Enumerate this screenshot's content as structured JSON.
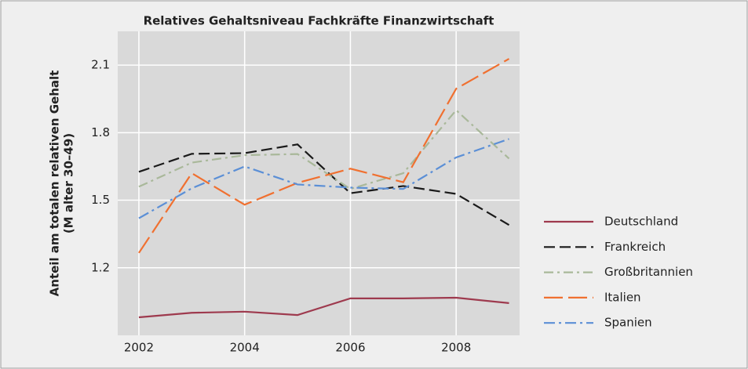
{
  "chart_data": {
    "type": "line",
    "title": "Relatives Gehaltsniveau Fachkräfte Finanzwirtschaft",
    "y_label": [
      "Anteil am totalen relativen Gehalt",
      "(M alter 30–49)"
    ],
    "x": [
      2002,
      2003,
      2004,
      2005,
      2006,
      2007,
      2008,
      2009
    ],
    "xlim": [
      2001.6,
      2009.2
    ],
    "xticks": [
      2002,
      2004,
      2006,
      2008
    ],
    "ylim": [
      0.9,
      2.25
    ],
    "yticks": [
      1.2,
      1.5,
      1.8,
      2.1
    ],
    "grid": true,
    "legend": "right",
    "series": [
      {
        "name": "Deutschland",
        "color": "#9e3a4e",
        "dash": "none",
        "values": [
          0.98,
          1.0,
          1.005,
          0.99,
          1.064,
          1.064,
          1.067,
          1.043
        ]
      },
      {
        "name": "Frankreich",
        "color": "#1a1a1a",
        "dash": "14 6",
        "values": [
          1.626,
          1.706,
          1.709,
          1.748,
          1.531,
          1.563,
          1.528,
          1.39
        ]
      },
      {
        "name": "Großbritannien",
        "color": "#a9b89a",
        "dash": "12 5 3 5",
        "values": [
          1.56,
          1.667,
          1.7,
          1.705,
          1.55,
          1.62,
          1.9,
          1.685
        ]
      },
      {
        "name": "Italien",
        "color": "#f07030",
        "dash": "24 7",
        "values": [
          1.266,
          1.62,
          1.48,
          1.577,
          1.64,
          1.58,
          1.995,
          2.128
        ]
      },
      {
        "name": "Spanien",
        "color": "#5b8fd6",
        "dash": "14 5 3 5",
        "values": [
          1.42,
          1.553,
          1.65,
          1.57,
          1.556,
          1.55,
          1.69,
          1.772
        ]
      }
    ]
  }
}
